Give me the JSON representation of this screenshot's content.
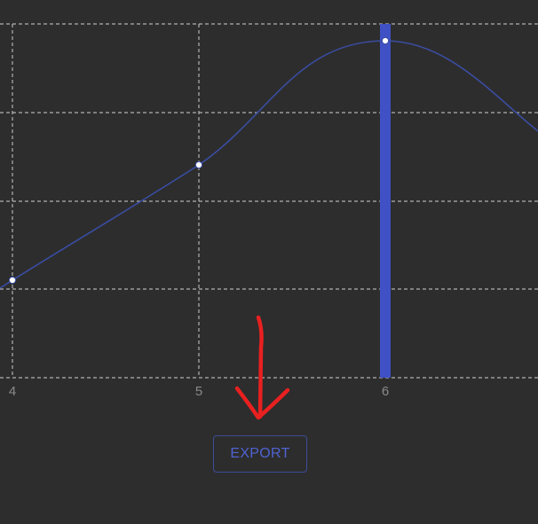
{
  "chart_data": {
    "type": "line",
    "x_ticks": [
      "4",
      "5",
      "6"
    ],
    "points": [
      {
        "x": 4,
        "y": 0.55
      },
      {
        "x": 5,
        "y": 1.2
      },
      {
        "x": 6,
        "y": 1.9
      }
    ],
    "highlight_x": 6,
    "grid": true,
    "colors": {
      "line": "#3a4da3",
      "highlight_bar": "#3f51c4",
      "grid": "#c8c8c8",
      "point_fill": "#ffffff"
    }
  },
  "annotation": {
    "arrow_color": "#e82020",
    "arrow_target": "export-button"
  },
  "toolbar": {
    "export_label": "EXPORT"
  },
  "colors": {
    "background": "#2d2d2d",
    "button_text": "#4f63d2",
    "button_border": "#3b4c9a"
  }
}
